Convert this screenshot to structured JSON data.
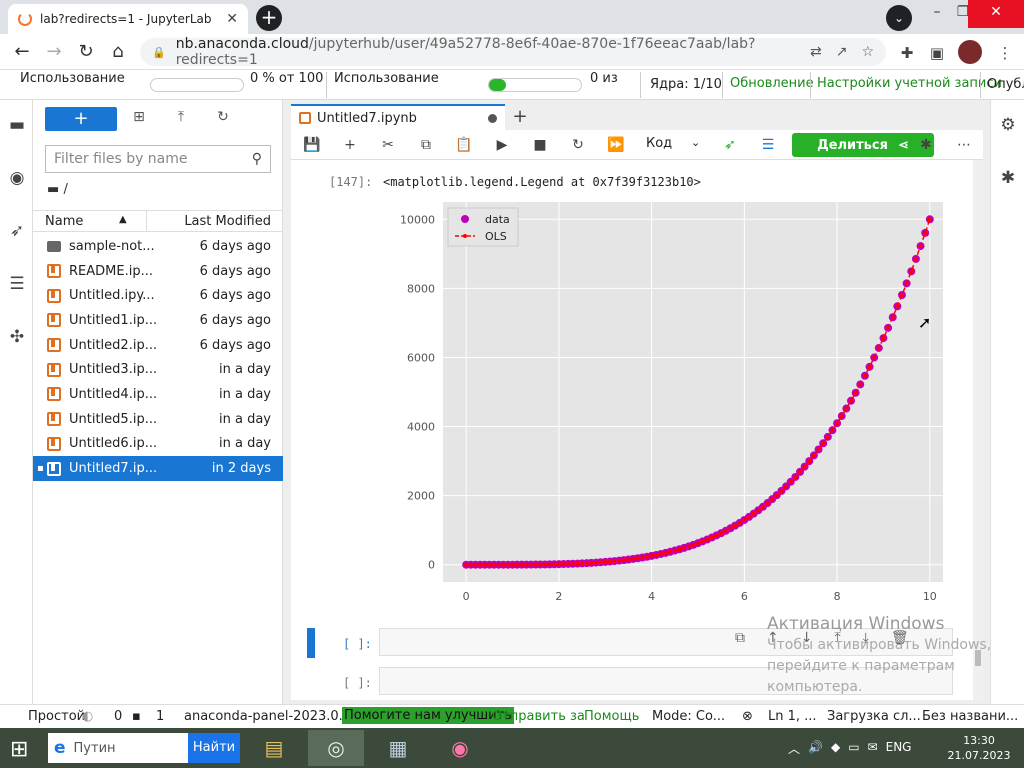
{
  "browser": {
    "tab_title": "lab?redirects=1 - JupyterLab",
    "url_host": "nb.anaconda.cloud",
    "url_path": "/jupyterhub/user/49a52778-8e6f-40ae-870e-1f76eeac7aab/lab?redirects=1"
  },
  "topbar": {
    "usage1_label": "Использование",
    "usage1_value": "0 % от 100",
    "usage2_label": "Использование",
    "usage2_value": "0 из",
    "usage2_fill": 0.18,
    "kernels": "Ядра: 1/10",
    "upgrade": "Обновление",
    "account": "Настройки учетной записи",
    "publish": "Опубл"
  },
  "filebrowser": {
    "new_label": "+",
    "filter_placeholder": "Filter files by name",
    "path": "/",
    "col_name": "Name",
    "col_modified": "Last Modified",
    "files": [
      {
        "name": "sample-not...",
        "modified": "6 days ago",
        "type": "folder"
      },
      {
        "name": "README.ip...",
        "modified": "6 days ago",
        "type": "notebook"
      },
      {
        "name": "Untitled.ipy...",
        "modified": "6 days ago",
        "type": "notebook"
      },
      {
        "name": "Untitled1.ip...",
        "modified": "6 days ago",
        "type": "notebook"
      },
      {
        "name": "Untitled2.ip...",
        "modified": "6 days ago",
        "type": "notebook"
      },
      {
        "name": "Untitled3.ip...",
        "modified": "in a day",
        "type": "notebook"
      },
      {
        "name": "Untitled4.ip...",
        "modified": "in a day",
        "type": "notebook"
      },
      {
        "name": "Untitled5.ip...",
        "modified": "in a day",
        "type": "notebook"
      },
      {
        "name": "Untitled6.ip...",
        "modified": "in a day",
        "type": "notebook"
      },
      {
        "name": "Untitled7.ip...",
        "modified": "in 2 days",
        "type": "notebook",
        "selected": true
      }
    ]
  },
  "notebook": {
    "tab_title": "Untitled7.ipynb",
    "kernel_mode": "Код",
    "share_label": "Делиться",
    "out_prompt": "[147]:",
    "out_text": "<matplotlib.legend.Legend at 0x7f39f3123b10>",
    "in_prompt_1": "[ ]:",
    "in_prompt_2": "[ ]:"
  },
  "chart_data": {
    "type": "scatter",
    "title": "",
    "xlabel": "",
    "ylabel": "",
    "xlim": [
      -0.5,
      10.5
    ],
    "ylim": [
      -500,
      10500
    ],
    "x_ticks": [
      "0",
      "2",
      "4",
      "6",
      "8",
      "10"
    ],
    "y_ticks": [
      "0",
      "2000",
      "4000",
      "6000",
      "8000",
      "10000"
    ],
    "grid": true,
    "legend_position": "top-left",
    "series": [
      {
        "name": "data",
        "style": "markers",
        "color": "#bf00bf",
        "function": "x^4",
        "x_range": [
          0,
          10
        ],
        "n_points": 101
      },
      {
        "name": "OLS",
        "style": "dashed-line-with-markers",
        "color": "#ff0000",
        "function": "x^4",
        "x_range": [
          0,
          10
        ],
        "n_points": 101
      }
    ],
    "sample_points": {
      "x": [
        0,
        2,
        4,
        6,
        8,
        10
      ],
      "y": [
        0,
        16,
        256,
        1296,
        4096,
        10000
      ]
    }
  },
  "statusbar": {
    "mode": "Простой",
    "count1": "0",
    "count2": "1",
    "kernel": "anaconda-panel-2023.0...",
    "help1": "Помогите нам улучшить",
    "help2": "Отправить за",
    "help3": "Помощь",
    "cmd_mode": "Mode: Co...",
    "position": "Ln 1, ...",
    "loading": "Загрузка сл...",
    "unnamed": "Без названи..."
  },
  "taskbar": {
    "search_placeholder": "Путин",
    "search_button": "Найти",
    "lang": "ENG",
    "time": "13:30",
    "date": "21.07.2023"
  },
  "watermark": {
    "title": "Активация Windows",
    "line1": "Чтобы активировать Windows,",
    "line2": "перейдите к параметрам",
    "line3": "компьютера."
  }
}
